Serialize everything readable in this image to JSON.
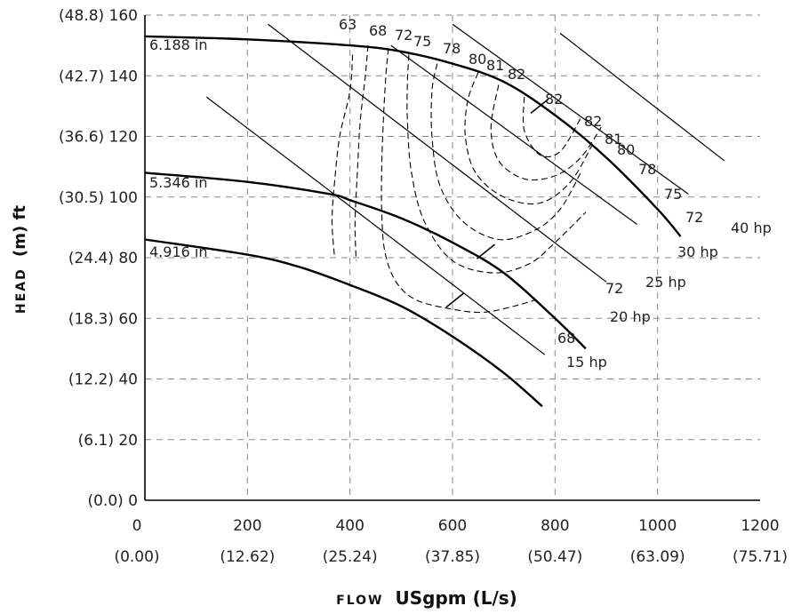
{
  "chart_data": {
    "type": "line",
    "xlabel_prefix": "FLOW",
    "xlabel": "USgpm (L/s)",
    "ylabel_prefix": "HEAD",
    "ylabel": "(m) ft",
    "xlim": [
      0,
      1200
    ],
    "ylim": [
      0,
      160
    ],
    "x_ticks": [
      0,
      200,
      400,
      600,
      800,
      1000,
      1200
    ],
    "x_tick_labels": [
      "0",
      "200",
      "400",
      "600",
      "800",
      "1000",
      "1200"
    ],
    "x_tick_labels_metric": [
      "(0.00)",
      "(12.62)",
      "(25.24)",
      "(37.85)",
      "(50.47)",
      "(63.09)",
      "(75.71)"
    ],
    "y_ticks": [
      0,
      20,
      40,
      60,
      80,
      100,
      120,
      140,
      160
    ],
    "y_tick_labels": [
      "(0.0) 0",
      "(6.1) 20",
      "(12.2) 40",
      "(18.3) 60",
      "(24.4) 80",
      "(30.5) 100",
      "(36.6) 120",
      "(42.7) 140",
      "(48.8) 160"
    ],
    "grid": true,
    "impeller_curves": [
      {
        "name": "6.188 in",
        "x": [
          0,
          200,
          400,
          500,
          600,
          700,
          800,
          900,
          1000,
          1045
        ],
        "y": [
          153,
          152,
          150,
          148,
          144,
          138,
          127,
          113,
          96,
          87
        ]
      },
      {
        "name": "5.346 in",
        "x": [
          0,
          200,
          360,
          400,
          500,
          600,
          700,
          800,
          860
        ],
        "y": [
          108,
          105,
          101,
          99,
          93,
          85,
          75,
          60,
          50
        ]
      },
      {
        "name": "4.916 in",
        "x": [
          0,
          200,
          300,
          400,
          500,
          600,
          700,
          775
        ],
        "y": [
          86,
          81,
          77,
          71,
          64,
          54,
          42,
          31
        ]
      }
    ],
    "power_lines": [
      {
        "name": "15 hp",
        "x": [
          120,
          780
        ],
        "y": [
          133,
          48
        ]
      },
      {
        "name": "20 hp",
        "x": [
          240,
          900
        ],
        "y": [
          157,
          72
        ]
      },
      {
        "name": "25 hp",
        "x": [
          480,
          960
        ],
        "y": [
          150,
          91
        ]
      },
      {
        "name": "30 hp",
        "x": [
          600,
          1060
        ],
        "y": [
          157,
          101
        ]
      },
      {
        "name": "40 hp",
        "x": [
          810,
          1130
        ],
        "y": [
          154,
          112
        ]
      }
    ],
    "power_labels": [
      "15 hp",
      "20 hp",
      "25 hp",
      "30 hp",
      "40 hp"
    ],
    "efficiency_contours": [
      {
        "name": "63",
        "x": [
          405,
          400,
          380,
          370,
          365,
          370
        ],
        "y": [
          147,
          135,
          120,
          105,
          92,
          80
        ]
      },
      {
        "name": "68",
        "x": [
          435,
          430,
          420,
          415,
          410,
          412
        ],
        "y": [
          150,
          140,
          125,
          110,
          92,
          79
        ]
      },
      {
        "name": "72",
        "x": [
          475,
          470,
          465,
          462,
          462,
          468,
          490,
          530,
          600,
          660,
          720,
          760
        ],
        "y": [
          149,
          140,
          125,
          110,
          95,
          82,
          72,
          66,
          63,
          62,
          64,
          66
        ]
      },
      {
        "name": "75",
        "x": [
          515,
          512,
          512,
          520,
          545,
          600,
          680,
          750,
          800,
          860
        ],
        "y": [
          147,
          138,
          125,
          108,
          92,
          79,
          75,
          78,
          85,
          95
        ]
      },
      {
        "name": "78",
        "x": [
          570,
          560,
          560,
          575,
          620,
          690,
          760,
          810,
          850
        ],
        "y": [
          144,
          135,
          120,
          104,
          92,
          86,
          89,
          96,
          108
        ]
      },
      {
        "name": "80",
        "x": [
          650,
          630,
          625,
          645,
          700,
          770,
          830,
          875
        ],
        "y": [
          141,
          132,
          120,
          108,
          100,
          98,
          105,
          118
        ]
      },
      {
        "name": "81",
        "x": [
          690,
          675,
          690,
          740,
          800,
          850,
          890
        ],
        "y": [
          137,
          123,
          112,
          106,
          107,
          113,
          123
        ]
      },
      {
        "name": "82",
        "x": [
          740,
          740,
          770,
          810,
          850
        ],
        "y": [
          133,
          122,
          114,
          115,
          126
        ]
      }
    ],
    "efficiency_labels_top": [
      "63",
      "68",
      "72",
      "75",
      "78",
      "80",
      "81",
      "82"
    ],
    "efficiency_labels_right": [
      "82",
      "82",
      "81",
      "80",
      "78",
      "75",
      "72"
    ],
    "efficiency_labels_lower": [
      "72",
      "68"
    ],
    "bep_marks": [
      {
        "x": 770,
        "y": 130
      },
      {
        "x": 665,
        "y": 82
      },
      {
        "x": 605,
        "y": 66
      }
    ]
  }
}
